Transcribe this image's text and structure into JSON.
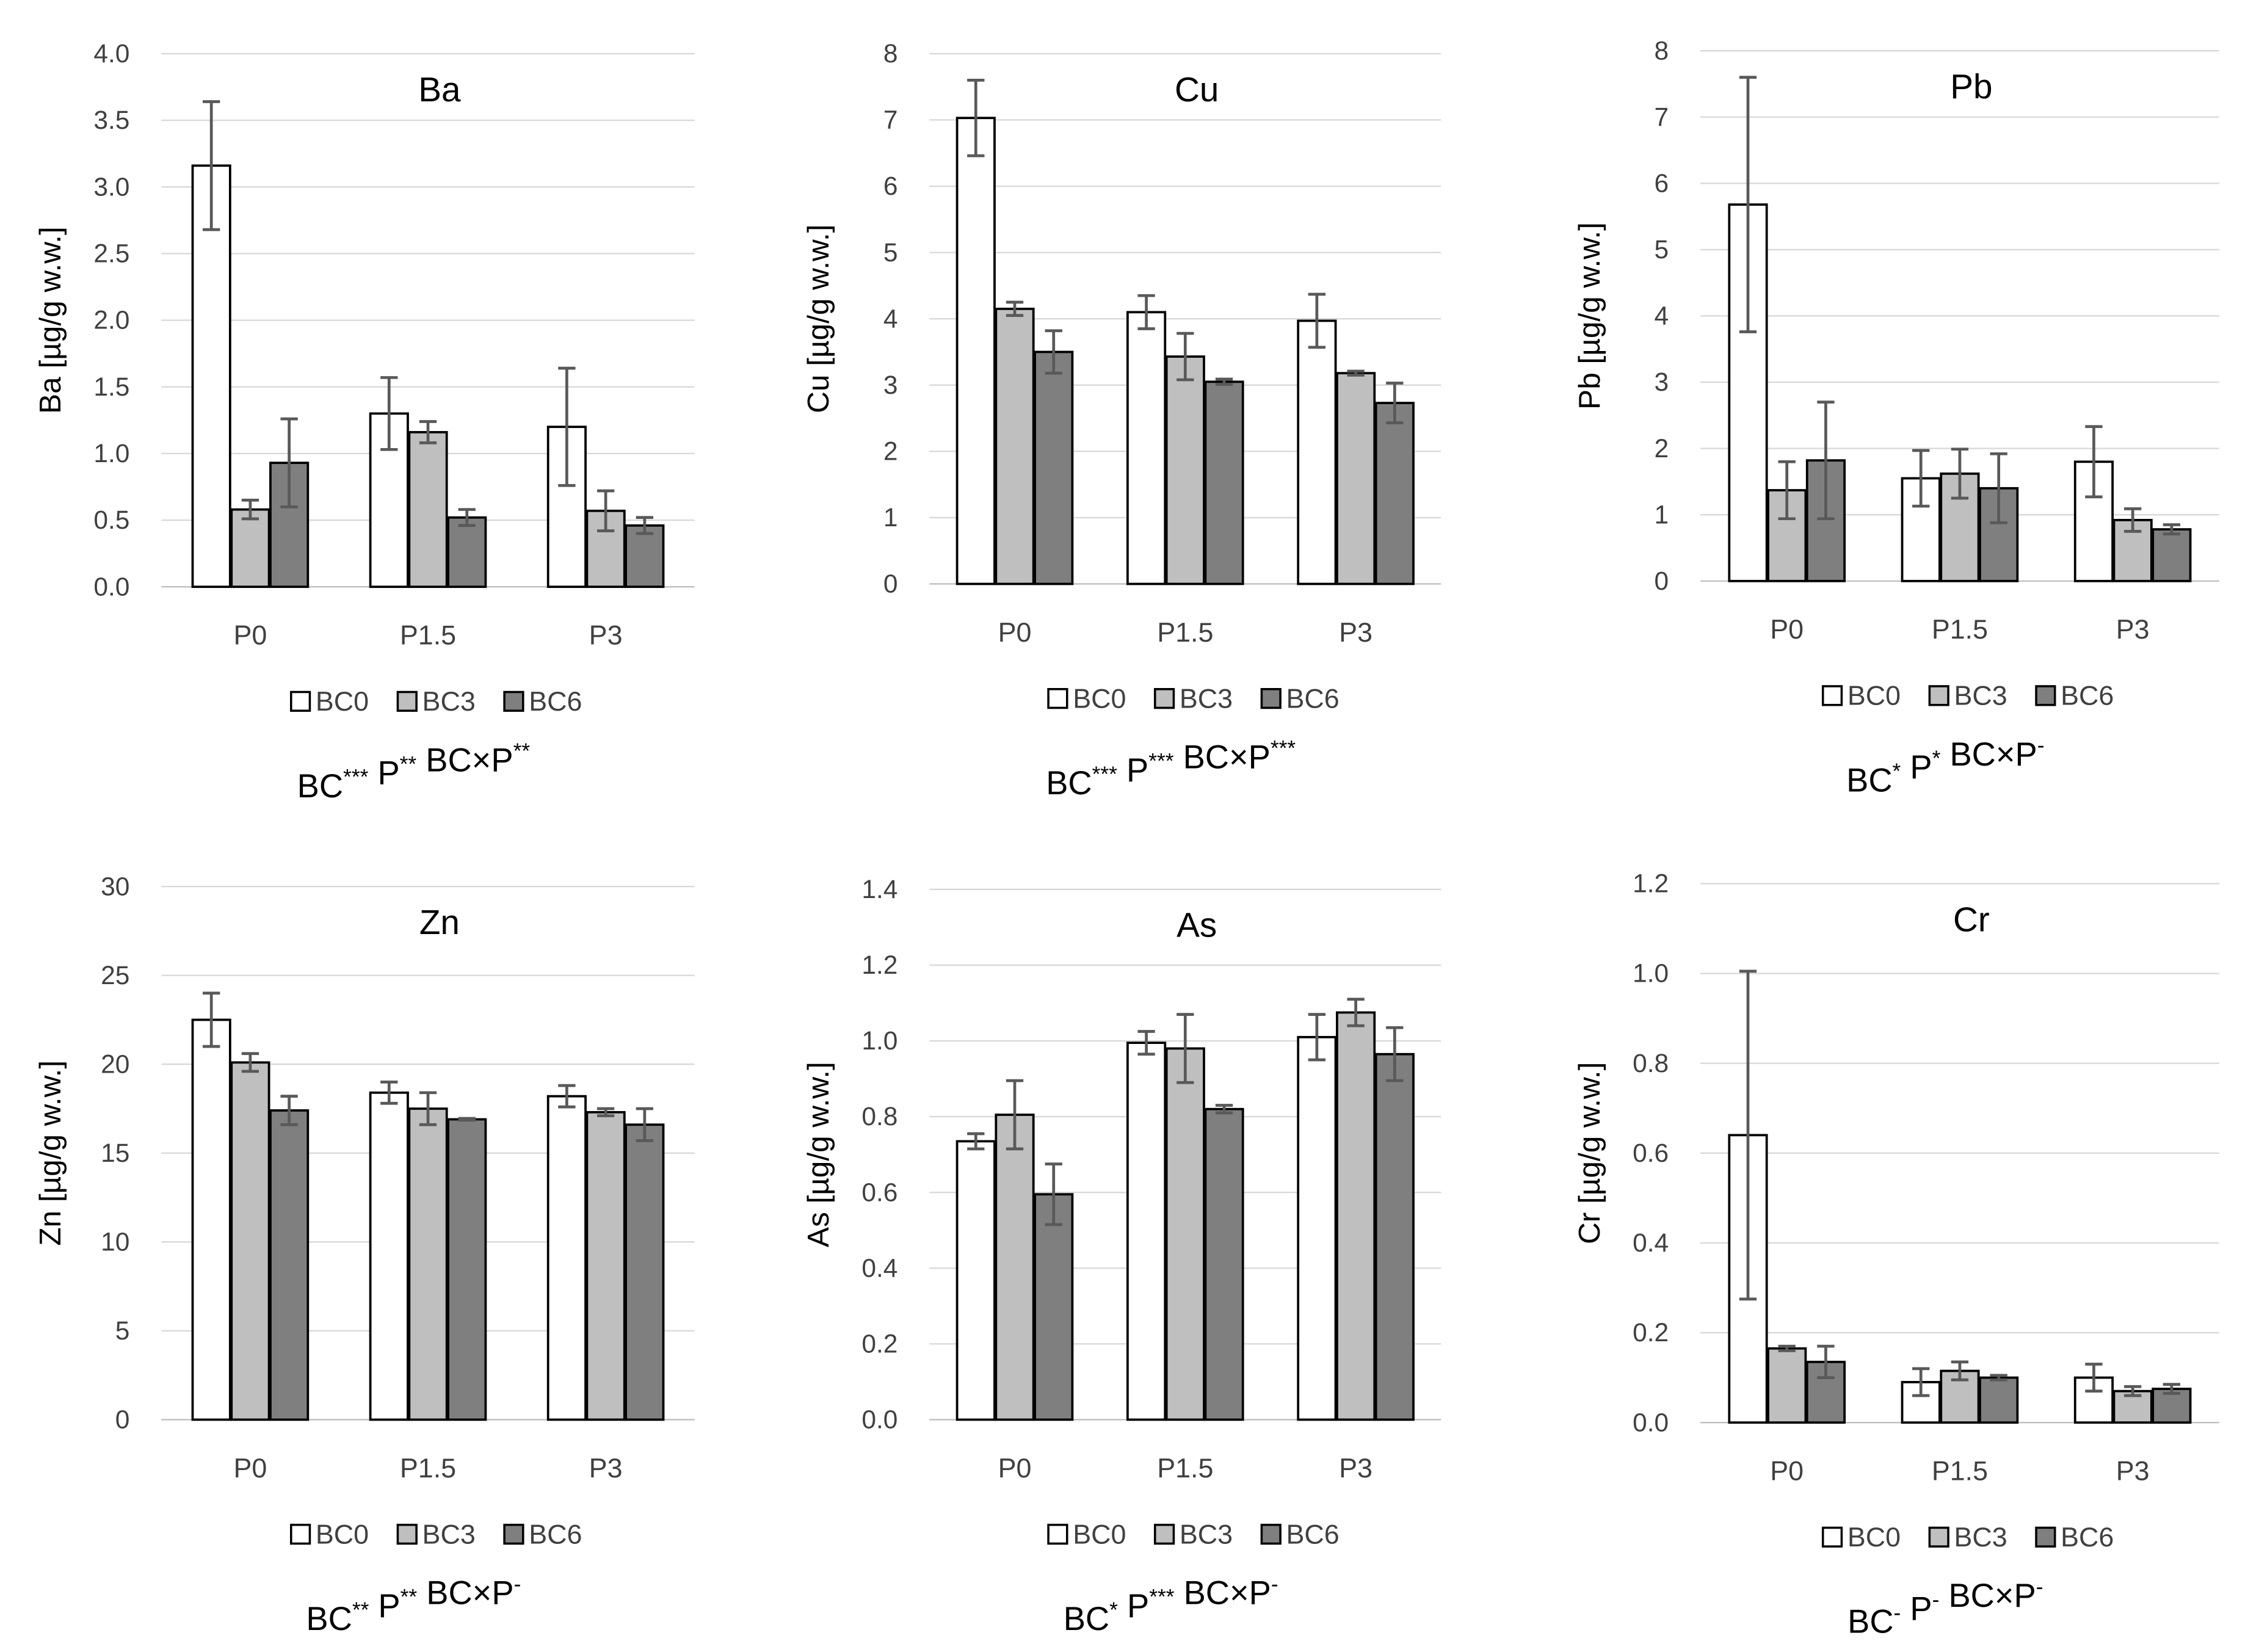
{
  "chart_data": [
    {
      "type": "bar",
      "title": "Ba",
      "ylabel": "Ba [µg/g w.w.]",
      "ylim": [
        0,
        4
      ],
      "ystep": 0.5,
      "decimals": 1,
      "categories": [
        "P0",
        "P1.5",
        "P3"
      ],
      "series": [
        {
          "name": "BC0",
          "values": [
            3.16,
            1.3,
            1.2
          ],
          "errors": [
            0.48,
            0.27,
            0.44
          ]
        },
        {
          "name": "BC3",
          "values": [
            0.58,
            1.16,
            0.57
          ],
          "errors": [
            0.07,
            0.08,
            0.15
          ]
        },
        {
          "name": "BC6",
          "values": [
            0.93,
            0.52,
            0.46
          ],
          "errors": [
            0.33,
            0.06,
            0.06
          ]
        }
      ],
      "footnote": [
        {
          "t": "BC",
          "s": "***"
        },
        {
          "t": " P",
          "s": "**"
        },
        {
          "t": " BC×P",
          "s": "**"
        }
      ]
    },
    {
      "type": "bar",
      "title": "Cu",
      "ylabel": "Cu [µg/g w.w.]",
      "ylim": [
        0,
        8
      ],
      "ystep": 1,
      "decimals": 0,
      "categories": [
        "P0",
        "P1.5",
        "P3"
      ],
      "series": [
        {
          "name": "BC0",
          "values": [
            7.03,
            4.1,
            3.97
          ],
          "errors": [
            0.57,
            0.25,
            0.4
          ]
        },
        {
          "name": "BC3",
          "values": [
            4.15,
            3.43,
            3.18
          ],
          "errors": [
            0.1,
            0.35,
            0.03
          ]
        },
        {
          "name": "BC6",
          "values": [
            3.5,
            3.05,
            2.73
          ],
          "errors": [
            0.32,
            0.04,
            0.3
          ]
        }
      ],
      "footnote": [
        {
          "t": "BC",
          "s": "***"
        },
        {
          "t": " P",
          "s": "***"
        },
        {
          "t": " BC×P",
          "s": "***"
        }
      ]
    },
    {
      "type": "bar",
      "title": "Pb",
      "ylabel": "Pb [µg/g w.w.]",
      "ylim": [
        0,
        8
      ],
      "ystep": 1,
      "decimals": 0,
      "categories": [
        "P0",
        "P1.5",
        "P3"
      ],
      "series": [
        {
          "name": "BC0",
          "values": [
            5.68,
            1.55,
            1.8
          ],
          "errors": [
            1.92,
            0.42,
            0.53
          ]
        },
        {
          "name": "BC3",
          "values": [
            1.37,
            1.62,
            0.92
          ],
          "errors": [
            0.43,
            0.37,
            0.17
          ]
        },
        {
          "name": "BC6",
          "values": [
            1.82,
            1.4,
            0.78
          ],
          "errors": [
            0.88,
            0.52,
            0.07
          ]
        }
      ],
      "footnote": [
        {
          "t": "BC",
          "s": "*"
        },
        {
          "t": " P",
          "s": "*"
        },
        {
          "t": " BC×P",
          "s": "-"
        }
      ]
    },
    {
      "type": "bar",
      "title": "Zn",
      "ylabel": "Zn [µg/g w.w.]",
      "ylim": [
        0,
        30
      ],
      "ystep": 5,
      "decimals": 0,
      "categories": [
        "P0",
        "P1.5",
        "P3"
      ],
      "series": [
        {
          "name": "BC0",
          "values": [
            22.5,
            18.4,
            18.2
          ],
          "errors": [
            1.5,
            0.6,
            0.6
          ]
        },
        {
          "name": "BC3",
          "values": [
            20.1,
            17.5,
            17.3
          ],
          "errors": [
            0.5,
            0.9,
            0.2
          ]
        },
        {
          "name": "BC6",
          "values": [
            17.4,
            16.9,
            16.6
          ],
          "errors": [
            0.8,
            0.05,
            0.9
          ]
        }
      ],
      "footnote": [
        {
          "t": "BC",
          "s": "**"
        },
        {
          "t": " P",
          "s": "**"
        },
        {
          "t": " BC×P",
          "s": "-"
        }
      ]
    },
    {
      "type": "bar",
      "title": "As",
      "ylabel": "As [µg/g w.w.]",
      "ylim": [
        0,
        1.4
      ],
      "ystep": 0.2,
      "decimals": 1,
      "categories": [
        "P0",
        "P1.5",
        "P3"
      ],
      "series": [
        {
          "name": "BC0",
          "values": [
            0.735,
            0.995,
            1.01
          ],
          "errors": [
            0.02,
            0.03,
            0.06
          ]
        },
        {
          "name": "BC3",
          "values": [
            0.805,
            0.98,
            1.075
          ],
          "errors": [
            0.09,
            0.09,
            0.035
          ]
        },
        {
          "name": "BC6",
          "values": [
            0.595,
            0.82,
            0.965
          ],
          "errors": [
            0.08,
            0.01,
            0.07
          ]
        }
      ],
      "footnote": [
        {
          "t": "BC",
          "s": "*"
        },
        {
          "t": " P",
          "s": "***"
        },
        {
          "t": " BC×P",
          "s": "-"
        }
      ]
    },
    {
      "type": "bar",
      "title": "Cr",
      "ylabel": "Cr [µg/g w.w.]",
      "ylim": [
        0,
        1.2
      ],
      "ystep": 0.2,
      "decimals": 1,
      "categories": [
        "P0",
        "P1.5",
        "P3"
      ],
      "series": [
        {
          "name": "BC0",
          "values": [
            0.64,
            0.09,
            0.1
          ],
          "errors": [
            0.365,
            0.03,
            0.03
          ]
        },
        {
          "name": "BC3",
          "values": [
            0.165,
            0.115,
            0.07
          ],
          "errors": [
            0.005,
            0.02,
            0.01
          ]
        },
        {
          "name": "BC6",
          "values": [
            0.135,
            0.1,
            0.075
          ],
          "errors": [
            0.035,
            0.005,
            0.01
          ]
        }
      ],
      "footnote": [
        {
          "t": "BC",
          "s": "-"
        },
        {
          "t": " P",
          "s": "-"
        },
        {
          "t": " BC×P",
          "s": "-"
        }
      ]
    }
  ],
  "colors": {
    "BC0": "#ffffff",
    "BC3": "#bfbfbf",
    "BC6": "#7f7f7f",
    "grid": "#d9d9d9",
    "error": "#595959"
  }
}
